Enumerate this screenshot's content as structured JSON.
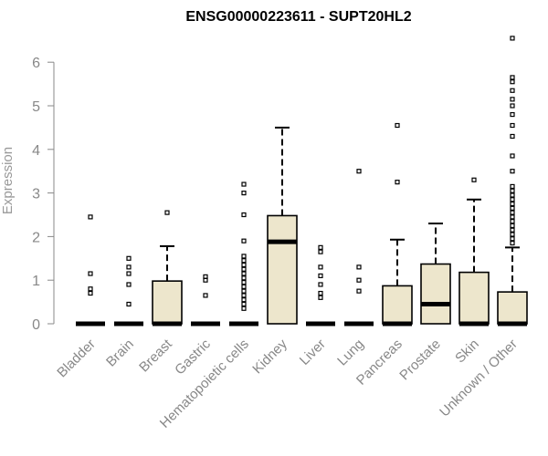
{
  "chart_data": {
    "type": "box",
    "title": "ENSG00000223611 - SUPT20HL2",
    "xlabel": "",
    "ylabel": "Expression",
    "ylim": [
      0,
      6.7
    ],
    "yticks": [
      0,
      1,
      2,
      3,
      4,
      5,
      6
    ],
    "colors": {
      "box_fill": "#ede6cc",
      "box_stroke": "#000000",
      "axis": "#888888"
    },
    "categories": [
      "Bladder",
      "Brain",
      "Breast",
      "Gastric",
      "Hematopoietic cells",
      "Kidney",
      "Liver",
      "Lung",
      "Pancreas",
      "Prostate",
      "Skin",
      "Unknown / Other"
    ],
    "boxes": [
      {
        "q1": 0,
        "median": 0,
        "q3": 0,
        "whisker_low": 0,
        "whisker_high": 0,
        "outliers": [
          0.7,
          0.8,
          1.15,
          2.45
        ]
      },
      {
        "q1": 0,
        "median": 0,
        "q3": 0,
        "whisker_low": 0,
        "whisker_high": 0,
        "outliers": [
          0.45,
          0.9,
          1.15,
          1.3,
          1.5
        ]
      },
      {
        "q1": 0,
        "median": 0,
        "q3": 0.98,
        "whisker_low": 0,
        "whisker_high": 1.78,
        "outliers": [
          2.55
        ]
      },
      {
        "q1": 0,
        "median": 0,
        "q3": 0,
        "whisker_low": 0,
        "whisker_high": 0,
        "outliers": [
          0.65,
          1.0,
          1.08
        ]
      },
      {
        "q1": 0,
        "median": 0,
        "q3": 0,
        "whisker_low": 0,
        "whisker_high": 0,
        "outliers": [
          0.35,
          0.45,
          0.55,
          0.65,
          0.75,
          0.85,
          0.95,
          1.05,
          1.15,
          1.25,
          1.35,
          1.45,
          1.55,
          1.9,
          2.5,
          3.0,
          3.2
        ]
      },
      {
        "q1": 0,
        "median": 1.88,
        "q3": 2.48,
        "whisker_low": 0,
        "whisker_high": 4.5,
        "outliers": []
      },
      {
        "q1": 0,
        "median": 0,
        "q3": 0,
        "whisker_low": 0,
        "whisker_high": 0,
        "outliers": [
          0.6,
          0.7,
          0.9,
          1.1,
          1.3,
          1.65,
          1.75
        ]
      },
      {
        "q1": 0,
        "median": 0,
        "q3": 0,
        "whisker_low": 0,
        "whisker_high": 0,
        "outliers": [
          0.75,
          1.0,
          1.3,
          3.5
        ]
      },
      {
        "q1": 0,
        "median": 0,
        "q3": 0.87,
        "whisker_low": 0,
        "whisker_high": 1.93,
        "outliers": [
          3.25,
          4.55
        ]
      },
      {
        "q1": 0,
        "median": 0.45,
        "q3": 1.37,
        "whisker_low": 0,
        "whisker_high": 2.3,
        "outliers": []
      },
      {
        "q1": 0,
        "median": 0,
        "q3": 1.18,
        "whisker_low": 0,
        "whisker_high": 2.85,
        "outliers": [
          3.3
        ]
      },
      {
        "q1": 0,
        "median": 0,
        "q3": 0.73,
        "whisker_low": 0,
        "whisker_high": 1.75,
        "outliers": [
          1.85,
          1.95,
          2.05,
          2.15,
          2.25,
          2.35,
          2.45,
          2.55,
          2.65,
          2.75,
          2.85,
          2.95,
          3.05,
          3.15,
          3.5,
          3.85,
          4.3,
          4.55,
          4.8,
          5.0,
          5.15,
          5.35,
          5.55,
          5.65,
          6.55
        ]
      }
    ]
  }
}
